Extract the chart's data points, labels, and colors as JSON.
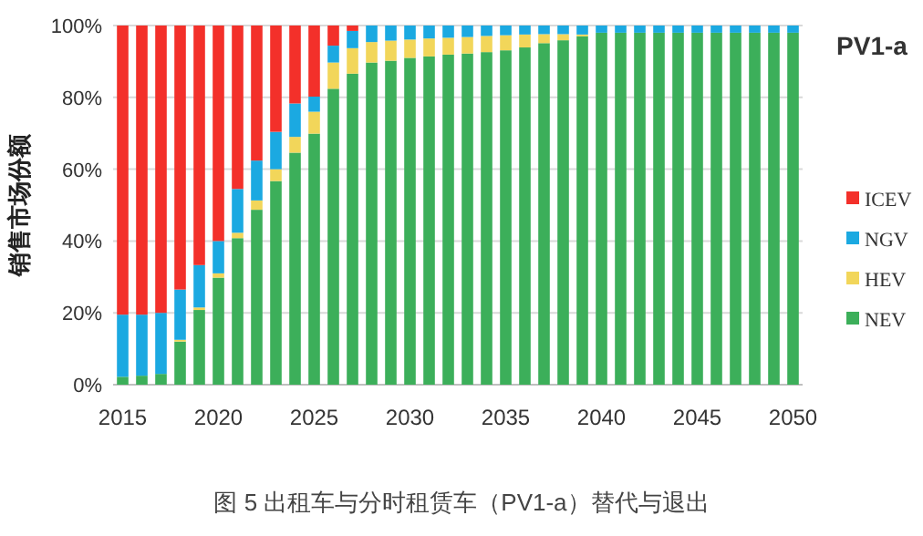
{
  "chart_data": {
    "type": "bar",
    "stacked": true,
    "title": "PV1-a",
    "ylabel": "销售市场份额",
    "annotations": [
      "图 5 出租车与分时租赁车（PV1-a）替代与退出"
    ],
    "categories": [
      "2015",
      null,
      null,
      null,
      null,
      "2020",
      null,
      null,
      null,
      null,
      "2025",
      null,
      null,
      null,
      null,
      "2030",
      null,
      null,
      null,
      null,
      "2035",
      null,
      null,
      null,
      null,
      "2040",
      null,
      null,
      null,
      null,
      "2045",
      null,
      null,
      null,
      null,
      "2050"
    ],
    "series": [
      {
        "name": "NEV",
        "color": "#3caf5a",
        "values": [
          2.2,
          2.5,
          3,
          12,
          20.8,
          29.8,
          40.8,
          48.7,
          56.7,
          64.6,
          69.9,
          82.4,
          86.6,
          89.7,
          90.2,
          91,
          91.4,
          91.9,
          92.2,
          92.6,
          93.1,
          93.9,
          95.1,
          95.9,
          97,
          98,
          98,
          98,
          98,
          98,
          98,
          98,
          98,
          98,
          98,
          98
        ]
      },
      {
        "name": "HEV",
        "color": "#f2d65a",
        "values": [
          0,
          0,
          0,
          0.5,
          0.7,
          1.2,
          1.5,
          2.6,
          3.3,
          4.4,
          6.1,
          7.3,
          7.1,
          5.7,
          5.6,
          5.1,
          5,
          4.7,
          4.6,
          4.5,
          4.2,
          3.6,
          2.5,
          1.7,
          0.5,
          0,
          0,
          0,
          0,
          0,
          0,
          0,
          0,
          0,
          0,
          0
        ]
      },
      {
        "name": "NGV",
        "color": "#1ba9e1",
        "values": [
          17.3,
          17,
          17,
          14,
          11.8,
          9,
          12.2,
          11.1,
          10.4,
          9.3,
          4.2,
          4.7,
          4.8,
          4.6,
          4.2,
          3.9,
          3.6,
          3.4,
          3.2,
          2.9,
          2.7,
          2.5,
          2.4,
          2.4,
          2.5,
          2,
          2,
          2,
          2,
          2,
          2,
          2,
          2,
          2,
          2,
          2
        ]
      },
      {
        "name": "ICEV",
        "color": "#f3302a",
        "values": [
          80.5,
          80.5,
          80,
          73.5,
          66.7,
          60,
          45.5,
          37.6,
          29.6,
          21.7,
          19.8,
          5.6,
          1.5,
          0,
          0,
          0,
          0,
          0,
          0,
          0,
          0,
          0,
          0,
          0,
          0,
          0,
          0,
          0,
          0,
          0,
          0,
          0,
          0,
          0,
          0,
          0
        ]
      }
    ],
    "ylim": [
      0,
      100
    ],
    "yticks": [
      {
        "value": 0,
        "label": "0%"
      },
      {
        "value": 20,
        "label": "20%"
      },
      {
        "value": 40,
        "label": "40%"
      },
      {
        "value": 60,
        "label": "60%"
      },
      {
        "value": 80,
        "label": "80%"
      },
      {
        "value": 100,
        "label": "100%"
      }
    ],
    "grid": "y",
    "legend": "right"
  }
}
